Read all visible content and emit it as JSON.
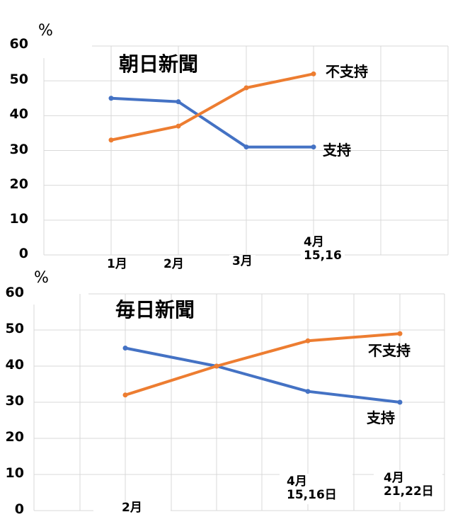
{
  "chart_data": [
    {
      "type": "line",
      "title": "朝日新聞",
      "ylabel": "%",
      "xlabel": "",
      "ylim": [
        0,
        60
      ],
      "yticks": [
        "60",
        "50",
        "40",
        "30",
        "20",
        "10",
        "0"
      ],
      "categories": [
        "1月",
        "2月",
        "3月",
        "4月\n15,16"
      ],
      "grid": true,
      "series": [
        {
          "name": "支持",
          "color": "#4472c4",
          "values": [
            45,
            44,
            31,
            31
          ]
        },
        {
          "name": "不支持",
          "color": "#ed7d31",
          "values": [
            33,
            37,
            48,
            52
          ]
        }
      ]
    },
    {
      "type": "line",
      "title": "毎日新聞",
      "ylabel": "%",
      "xlabel": "",
      "ylim": [
        0,
        60
      ],
      "yticks": [
        "60",
        "50",
        "40",
        "30",
        "20",
        "10",
        "0"
      ],
      "categories": [
        "2月",
        "",
        "4月\n15,16日",
        "4月\n21,22日"
      ],
      "grid": true,
      "series": [
        {
          "name": "支持",
          "color": "#4472c4",
          "values": [
            45,
            40,
            33,
            30
          ]
        },
        {
          "name": "不支持",
          "color": "#ed7d31",
          "values": [
            32,
            40,
            47,
            49
          ]
        }
      ]
    }
  ],
  "asahi": {
    "title": "朝日新聞",
    "unit": "%",
    "yticks": [
      "60",
      "50",
      "40",
      "30",
      "20",
      "10",
      "0"
    ],
    "x_labels": {
      "jan": "1月",
      "feb": "2月",
      "mar": "3月",
      "apr_line1": "4月",
      "apr_line2": "15,16"
    },
    "series_labels": {
      "support": "支持",
      "nonsupport": "不支持"
    }
  },
  "mainichi": {
    "title": "毎日新聞",
    "unit": "%",
    "yticks": [
      "60",
      "50",
      "40",
      "30",
      "20",
      "10",
      "0"
    ],
    "x_labels": {
      "feb": "2月",
      "apr1_line1": "4月",
      "apr1_line2": "15,16日",
      "apr2_line1": "4月",
      "apr2_line2": "21,22日"
    },
    "series_labels": {
      "support": "支持",
      "nonsupport": "不支持"
    }
  },
  "colors": {
    "support": "#4472c4",
    "nonsupport": "#ed7d31",
    "grid": "#d9d9d9"
  }
}
